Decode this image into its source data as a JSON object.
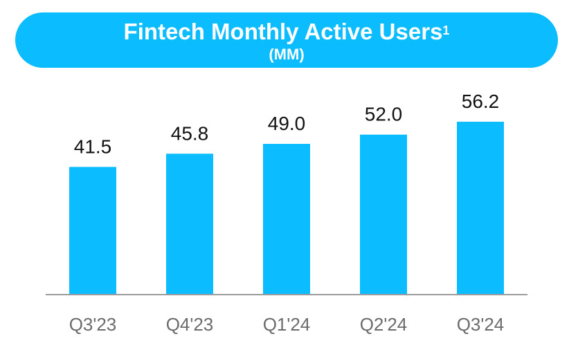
{
  "title": {
    "text": "Fintech Monthly Active Users",
    "footnote": "1",
    "subtitle": "(MM)"
  },
  "colors": {
    "bar": "#0bbcff",
    "banner": "#0bbcff",
    "axis": "#9a9a9a"
  },
  "chart_data": {
    "type": "bar",
    "title": "Fintech Monthly Active Users",
    "subtitle": "(MM)",
    "categories": [
      "Q3'23",
      "Q4'23",
      "Q1'24",
      "Q2'24",
      "Q3'24"
    ],
    "values": [
      41.5,
      45.8,
      49.0,
      52.0,
      56.2
    ],
    "value_labels": [
      "41.5",
      "45.8",
      "49.0",
      "52.0",
      "56.2"
    ],
    "xlabel": "",
    "ylabel": "",
    "ylim": [
      0,
      56.2
    ],
    "grid": false,
    "legend": "none"
  }
}
